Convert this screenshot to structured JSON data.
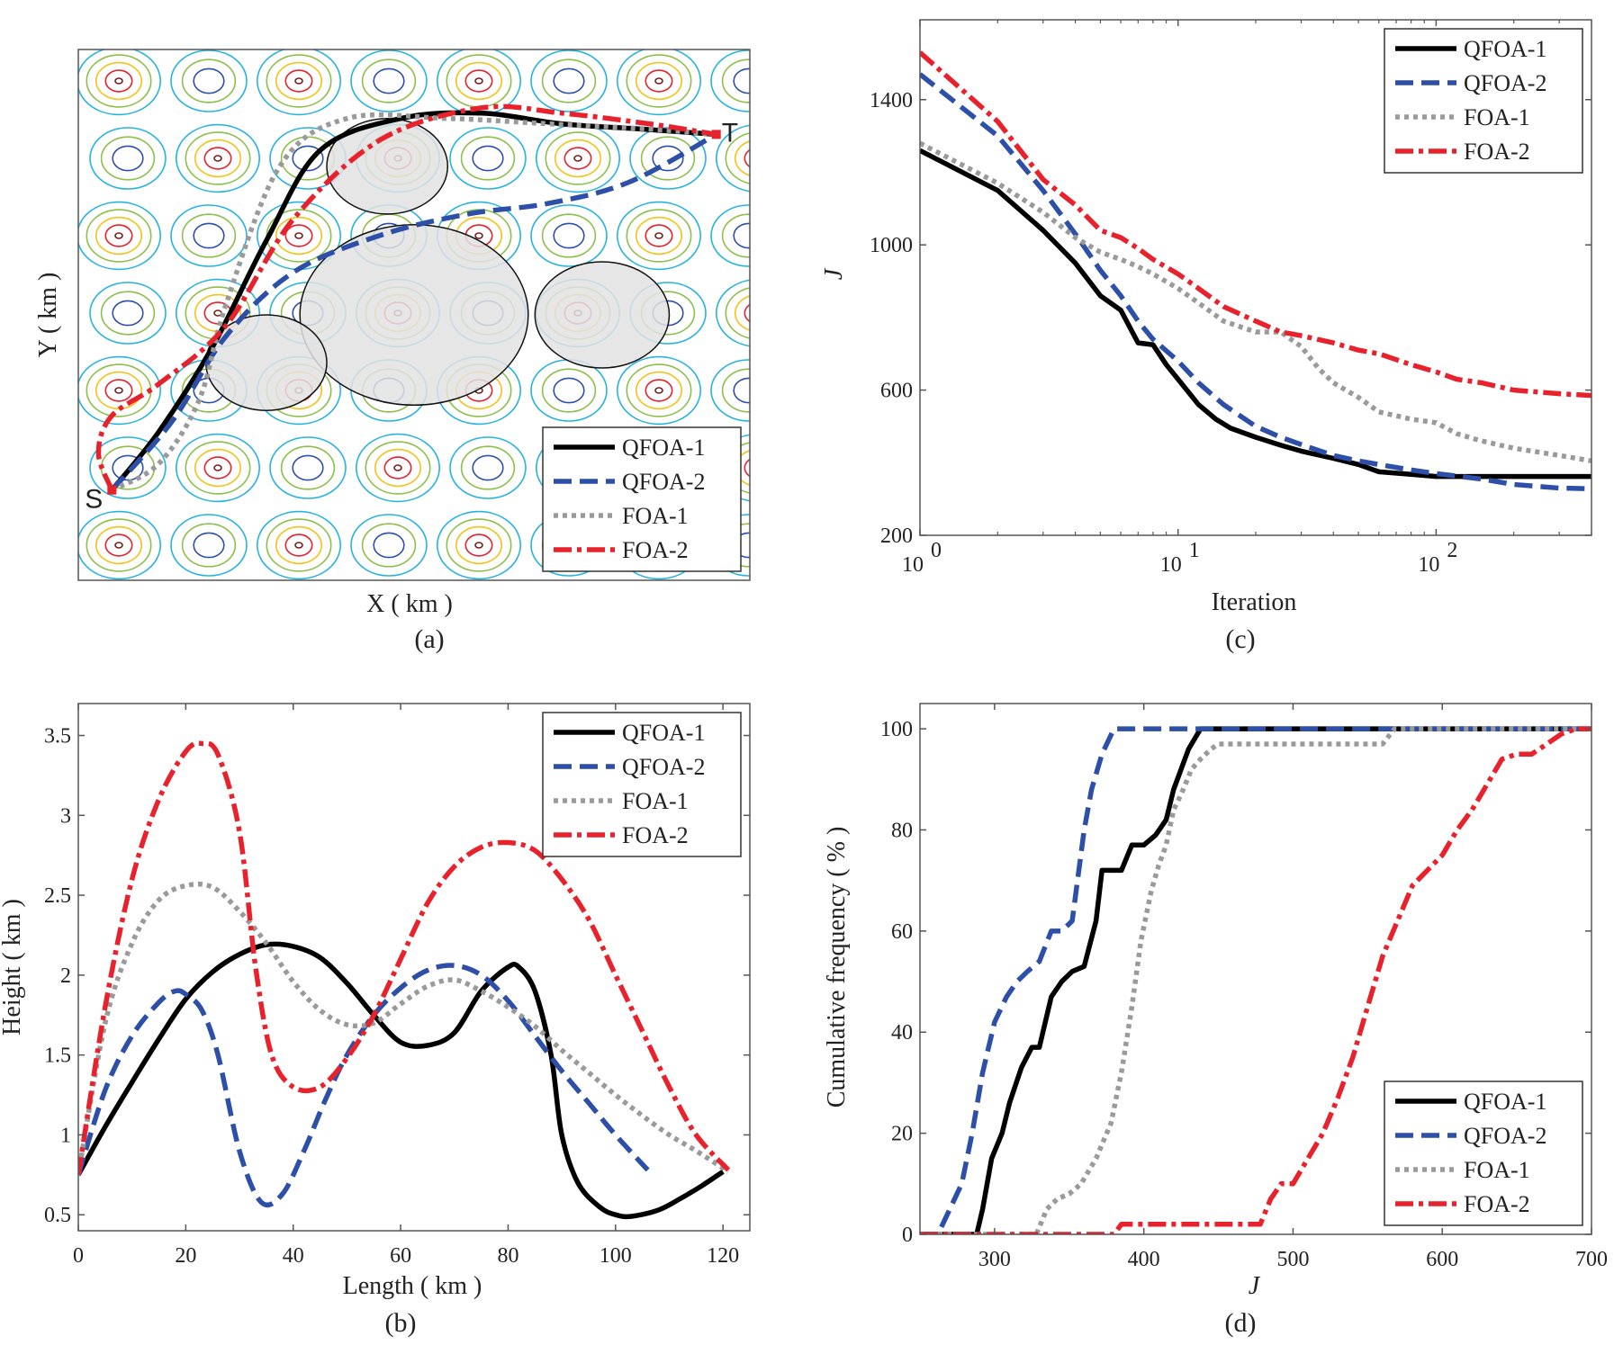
{
  "colors": {
    "QFOA-1": "#000000",
    "QFOA-2": "#2d4fa8",
    "FOA-1": "#9a9a9a",
    "FOA-2": "#e8222c",
    "threat_fill": "#e2e2e2",
    "contour_palette": [
      "#27b3e0",
      "#8dbf4a",
      "#f5c21a",
      "#e8222c",
      "#7a1c1c",
      "#2d4fa8"
    ]
  },
  "legend_labels": [
    "QFOA-1",
    "QFOA-2",
    "FOA-1",
    "FOA-2"
  ],
  "chart_data": [
    {
      "id": "a",
      "caption": "(a)",
      "type": "line",
      "title": "",
      "xlabel": "X ( km )",
      "ylabel": "Y ( km )",
      "xlim": [
        0,
        100
      ],
      "ylim": [
        0,
        100
      ],
      "ticks": false,
      "start_label": "S",
      "target_label": "T",
      "start": [
        5,
        17
      ],
      "target": [
        95,
        84
      ],
      "threats": [
        {
          "cx": 46,
          "cy": 78,
          "r": 9
        },
        {
          "cx": 50,
          "cy": 50,
          "r": 17
        },
        {
          "cx": 78,
          "cy": 50,
          "r": 10
        },
        {
          "cx": 28,
          "cy": 41,
          "r": 9
        }
      ],
      "legend_position": "bottom-right",
      "series": [
        {
          "name": "QFOA-1",
          "x": [
            5,
            12,
            20,
            28,
            36,
            48,
            60,
            72,
            84,
            95
          ],
          "y": [
            17,
            28,
            44,
            64,
            81,
            87,
            88,
            86,
            85,
            84
          ]
        },
        {
          "name": "QFOA-2",
          "x": [
            5,
            14,
            22,
            32,
            45,
            58,
            70,
            82,
            95
          ],
          "y": [
            17,
            30,
            46,
            58,
            65,
            69,
            71,
            75,
            84
          ]
        },
        {
          "name": "FOA-1",
          "x": [
            5,
            12,
            18,
            22,
            30,
            40,
            55,
            70,
            85,
            95
          ],
          "y": [
            17,
            22,
            34,
            52,
            78,
            87,
            87,
            86,
            85,
            84
          ]
        },
        {
          "name": "FOA-2",
          "x": [
            5,
            3,
            5,
            12,
            22,
            32,
            45,
            60,
            72,
            85,
            95
          ],
          "y": [
            17,
            24,
            31,
            37,
            48,
            68,
            83,
            89,
            88,
            86,
            84
          ]
        }
      ]
    },
    {
      "id": "b",
      "caption": "(b)",
      "type": "line",
      "title": "",
      "xlabel": "Length ( km )",
      "ylabel": "Height ( km )",
      "xlim": [
        0,
        125
      ],
      "ylim": [
        0.4,
        3.7
      ],
      "xticks": [
        "0",
        "20",
        "40",
        "60",
        "80",
        "100",
        "120"
      ],
      "yticks": [
        "0.5",
        "1",
        "1.5",
        "2",
        "2.5",
        "3",
        "3.5"
      ],
      "legend_position": "top-right",
      "series": [
        {
          "name": "QFOA-1",
          "x": [
            0,
            5,
            10,
            15,
            20,
            25,
            30,
            35,
            40,
            45,
            50,
            55,
            60,
            65,
            70,
            75,
            80,
            82,
            85,
            88,
            90,
            93,
            97,
            100,
            103,
            108,
            112,
            116,
            120
          ],
          "y": [
            0.75,
            1.05,
            1.33,
            1.6,
            1.85,
            2.02,
            2.13,
            2.19,
            2.18,
            2.11,
            1.95,
            1.75,
            1.58,
            1.56,
            1.64,
            1.9,
            2.05,
            2.05,
            1.9,
            1.5,
            1.0,
            0.7,
            0.55,
            0.5,
            0.49,
            0.53,
            0.6,
            0.68,
            0.77
          ]
        },
        {
          "name": "QFOA-2",
          "x": [
            0,
            5,
            10,
            15,
            18,
            20,
            23,
            26,
            30,
            34,
            38,
            42,
            46,
            50,
            55,
            60,
            65,
            70,
            75,
            80,
            85,
            90,
            95,
            100,
            106
          ],
          "y": [
            0.75,
            1.28,
            1.62,
            1.83,
            1.9,
            1.88,
            1.78,
            1.5,
            0.9,
            0.58,
            0.63,
            0.9,
            1.22,
            1.5,
            1.75,
            1.92,
            2.03,
            2.06,
            2.0,
            1.84,
            1.62,
            1.4,
            1.2,
            1.0,
            0.78
          ]
        },
        {
          "name": "FOA-1",
          "x": [
            0,
            5,
            10,
            15,
            20,
            25,
            30,
            35,
            40,
            45,
            50,
            55,
            60,
            65,
            70,
            75,
            80,
            85,
            90,
            95,
            100,
            105,
            110,
            115,
            121
          ],
          "y": [
            0.75,
            1.7,
            2.2,
            2.47,
            2.56,
            2.55,
            2.4,
            2.2,
            1.96,
            1.78,
            1.69,
            1.7,
            1.82,
            1.93,
            1.97,
            1.9,
            1.8,
            1.68,
            1.53,
            1.39,
            1.25,
            1.12,
            1.0,
            0.9,
            0.77
          ]
        },
        {
          "name": "FOA-2",
          "x": [
            0,
            5,
            10,
            15,
            20,
            23,
            26,
            30,
            33,
            36,
            40,
            45,
            50,
            55,
            60,
            65,
            70,
            75,
            80,
            85,
            90,
            95,
            100,
            105,
            110,
            115,
            121
          ],
          "y": [
            0.75,
            1.8,
            2.6,
            3.1,
            3.4,
            3.45,
            3.38,
            2.9,
            2.05,
            1.5,
            1.3,
            1.3,
            1.48,
            1.75,
            2.1,
            2.45,
            2.68,
            2.8,
            2.83,
            2.78,
            2.6,
            2.35,
            2.0,
            1.65,
            1.3,
            1.0,
            0.78
          ]
        }
      ]
    },
    {
      "id": "c",
      "caption": "(c)",
      "type": "line",
      "title": "",
      "xlabel": "Iteration",
      "ylabel": "J",
      "xscale": "log",
      "xlim": [
        1,
        400
      ],
      "ylim": [
        200,
        1620
      ],
      "xticks": [
        {
          "base": "10",
          "exp": "0",
          "value": 1
        },
        {
          "base": "10",
          "exp": "1",
          "value": 10
        },
        {
          "base": "10",
          "exp": "2",
          "value": 100
        }
      ],
      "yticks": [
        "200",
        "600",
        "1000",
        "1400"
      ],
      "legend_position": "top-right",
      "series": [
        {
          "name": "QFOA-1",
          "x": [
            1,
            2,
            3,
            4,
            5,
            6,
            7,
            8,
            9,
            10,
            12,
            14,
            16,
            20,
            25,
            30,
            40,
            50,
            60,
            80,
            100,
            150,
            200,
            300,
            400
          ],
          "y": [
            1260,
            1150,
            1040,
            950,
            860,
            820,
            730,
            725,
            670,
            630,
            560,
            520,
            495,
            470,
            448,
            432,
            412,
            395,
            375,
            368,
            362,
            362,
            362,
            362,
            362
          ]
        },
        {
          "name": "QFOA-2",
          "x": [
            1,
            2,
            3,
            4,
            5,
            6,
            7,
            8,
            10,
            12,
            15,
            20,
            25,
            30,
            40,
            50,
            60,
            80,
            100,
            150,
            200,
            300,
            400
          ],
          "y": [
            1470,
            1300,
            1150,
            1030,
            930,
            860,
            790,
            740,
            680,
            620,
            560,
            500,
            470,
            450,
            420,
            405,
            395,
            380,
            370,
            355,
            340,
            330,
            328
          ]
        },
        {
          "name": "FOA-1",
          "x": [
            1,
            2,
            3,
            4,
            5,
            6,
            7,
            8,
            10,
            12,
            15,
            20,
            25,
            30,
            35,
            40,
            50,
            60,
            80,
            100,
            120,
            150,
            200,
            300,
            400
          ],
          "y": [
            1280,
            1170,
            1090,
            1020,
            980,
            960,
            940,
            920,
            880,
            840,
            790,
            760,
            760,
            720,
            660,
            620,
            580,
            540,
            520,
            510,
            480,
            460,
            440,
            420,
            405
          ]
        },
        {
          "name": "FOA-2",
          "x": [
            1,
            2,
            3,
            4,
            5,
            6,
            7,
            8,
            10,
            12,
            15,
            20,
            25,
            30,
            40,
            50,
            60,
            80,
            100,
            120,
            150,
            200,
            300,
            400
          ],
          "y": [
            1530,
            1340,
            1180,
            1110,
            1040,
            1020,
            990,
            960,
            920,
            880,
            830,
            790,
            760,
            750,
            730,
            710,
            700,
            670,
            650,
            630,
            620,
            600,
            590,
            585
          ]
        }
      ]
    },
    {
      "id": "d",
      "caption": "(d)",
      "type": "line",
      "title": "",
      "xlabel": "J",
      "ylabel": "Cumulative frequency ( % )",
      "xlim": [
        250,
        700
      ],
      "ylim": [
        0,
        105
      ],
      "xticks": [
        "300",
        "400",
        "500",
        "600",
        "700"
      ],
      "yticks": [
        "0",
        "20",
        "40",
        "60",
        "80",
        "100"
      ],
      "legend_position": "bottom-right",
      "series": [
        {
          "name": "QFOA-1",
          "x": [
            250,
            288,
            292,
            298,
            305,
            310,
            318,
            325,
            330,
            338,
            345,
            352,
            360,
            368,
            372,
            378,
            385,
            392,
            400,
            408,
            415,
            420,
            425,
            430,
            438,
            700
          ],
          "y": [
            0,
            0,
            5,
            15,
            20,
            26,
            33,
            37,
            37,
            47,
            50,
            52,
            53,
            62,
            72,
            72,
            72,
            77,
            77,
            79,
            82,
            88,
            92,
            96,
            100,
            100
          ]
        },
        {
          "name": "QFOA-2",
          "x": [
            250,
            262,
            270,
            278,
            285,
            292,
            300,
            308,
            315,
            322,
            330,
            338,
            345,
            352,
            360,
            365,
            372,
            380,
            700
          ],
          "y": [
            0,
            0,
            5,
            10,
            20,
            32,
            42,
            47,
            50,
            52,
            54,
            60,
            60,
            62,
            80,
            88,
            95,
            100,
            100
          ]
        },
        {
          "name": "FOA-1",
          "x": [
            250,
            328,
            335,
            342,
            350,
            358,
            368,
            378,
            385,
            392,
            398,
            405,
            410,
            415,
            420,
            425,
            432,
            438,
            445,
            450,
            460,
            560,
            568,
            700
          ],
          "y": [
            0,
            0,
            5,
            7,
            8,
            10,
            15,
            22,
            32,
            45,
            58,
            68,
            73,
            77,
            84,
            87,
            92,
            94,
            96,
            97,
            97,
            97,
            100,
            100
          ]
        },
        {
          "name": "FOA-2",
          "x": [
            250,
            380,
            385,
            390,
            478,
            485,
            492,
            500,
            510,
            520,
            530,
            540,
            550,
            560,
            570,
            580,
            590,
            600,
            610,
            620,
            630,
            640,
            650,
            660,
            670,
            680,
            690,
            700
          ],
          "y": [
            0,
            0,
            2,
            2,
            2,
            7,
            10,
            10,
            15,
            20,
            27,
            35,
            45,
            55,
            62,
            69,
            72,
            75,
            80,
            84,
            89,
            94,
            95,
            95,
            97,
            99,
            100,
            100
          ]
        }
      ]
    }
  ]
}
